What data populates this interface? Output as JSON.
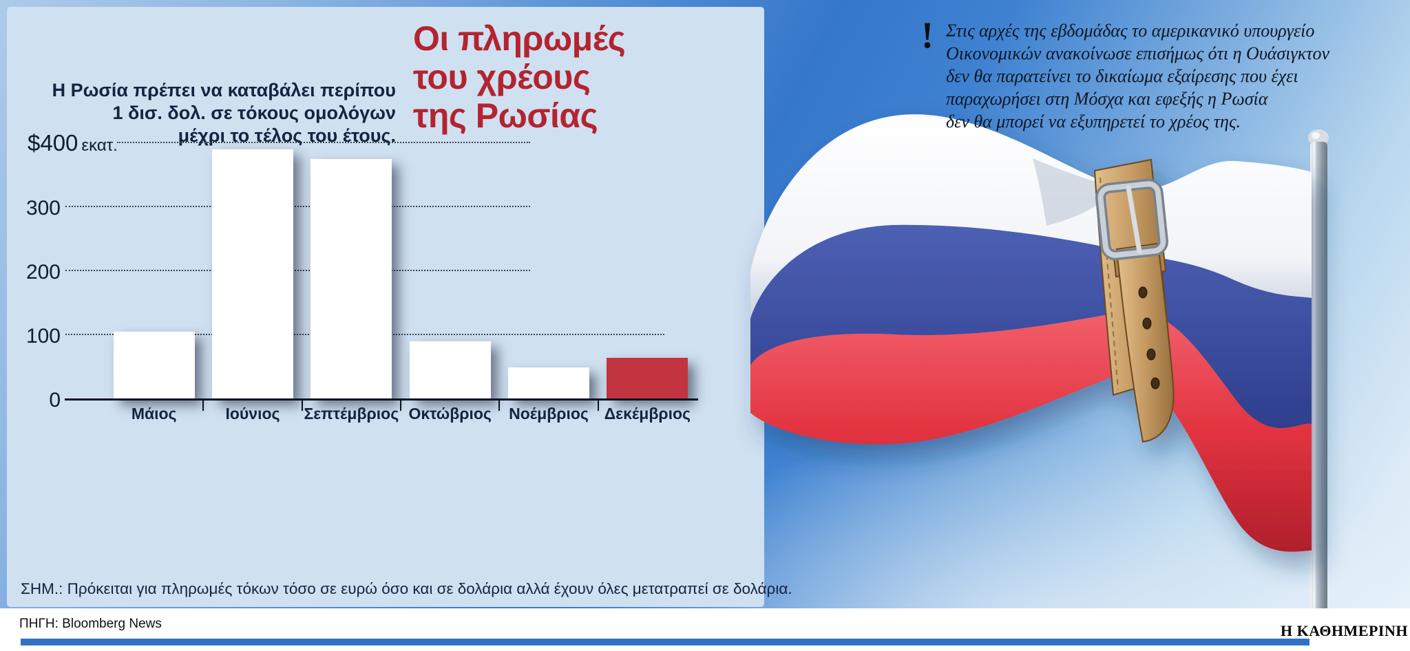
{
  "panel": {
    "title_lines": [
      "Οι πληρωμές",
      "του χρέους",
      "της Ρωσίας"
    ],
    "subtitle_lines": [
      "Η Ρωσία πρέπει να καταβάλει περίπου",
      "1 δισ. δολ. σε τόκους ομολόγων",
      "μέχρι το τέλος του έτους."
    ],
    "note": "ΣΗΜ.: Πρόκειται για πληρωμές τόκων τόσο σε ευρώ όσο και σε δολάρια αλλά έχουν όλες μετατραπεί σε δολάρια."
  },
  "callout": {
    "mark": "!",
    "lines": [
      "Στις αρχές της εβδομάδας το αμερικανικό υπουργείο",
      "Οικονομικών ανακοίνωσε επισήμως ότι η Ουάσιγκτον",
      "δεν θα παρατείνει το δικαίωμα εξαίρεσης που έχει",
      "παραχωρήσει στη Μόσχα και εφεξής η Ρωσία",
      "δεν θα μπορεί να εξυπηρετεί το χρέος της."
    ]
  },
  "footer": {
    "source": "ΠΗΓΗ: Bloomberg News",
    "brand": "Η ΚΑΘΗΜΕΡΙΝΗ"
  },
  "colors": {
    "title_red": "#b3242f",
    "panel_blue": "#cfe0f1",
    "december_bar": "#c23440",
    "footer_bar_blue": "#2f72c4",
    "flag_blue": "#3c4f9f",
    "flag_red": "#d92f3c"
  },
  "chart_data": {
    "type": "bar",
    "title": "Οι πληρωμές του χρέους της Ρωσίας",
    "subtitle": "Η Ρωσία πρέπει να καταβάλει περίπου 1 δισ. δολ. σε τόκους ομολόγων μέχρι το τέλος του έτους.",
    "categories": [
      "Μάιος",
      "Ιούνιος",
      "Σεπτέμβριος",
      "Οκτώβριος",
      "Νοέμβριος",
      "Δεκέμβριος"
    ],
    "values": [
      105,
      390,
      375,
      90,
      50,
      65
    ],
    "unit": "$ εκατ.",
    "y_ticks": [
      0,
      100,
      200,
      300,
      400
    ],
    "y_top_label": {
      "value": "$400",
      "unit": "εκατ."
    },
    "ylim": [
      0,
      430
    ],
    "xlabel": "",
    "ylabel": "",
    "grid": "horizontal-dotted",
    "legend": "none",
    "bar_colors": [
      "#ffffff",
      "#ffffff",
      "#ffffff",
      "#ffffff",
      "#ffffff",
      "#c23440"
    ],
    "highlight_index": 5,
    "note": "ΣΗΜ.: Πρόκειται για πληρωμές τόκων τόσο σε ευρώ όσο και σε δολάρια αλλά έχουν όλες μετατραπεί σε δολάρια.",
    "source": "Bloomberg News"
  }
}
